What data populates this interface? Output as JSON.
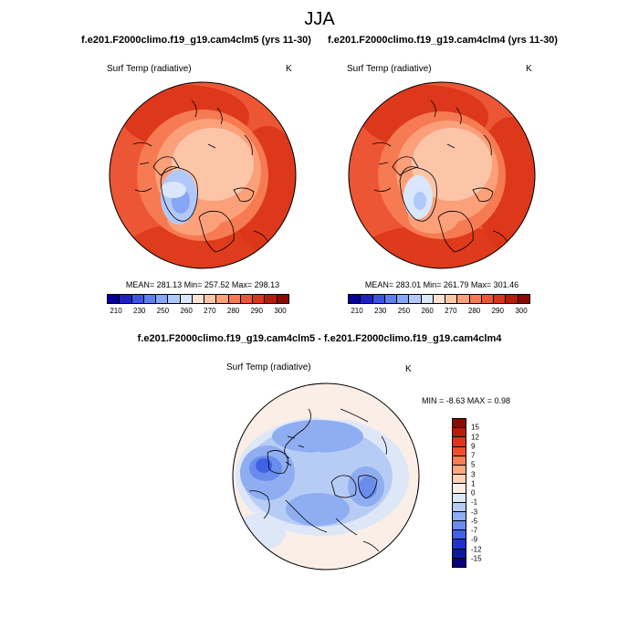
{
  "title": "JJA",
  "panels": [
    {
      "title": "f.e201.F2000climo.f19_g19.cam4clm5 (yrs 11-30)",
      "variable": "Surf Temp (radiative)",
      "units": "K",
      "stats": "MEAN= 281.13  Min= 257.52  Max= 298.13"
    },
    {
      "title": "f.e201.F2000climo.f19_g19.cam4clm4 (yrs 11-30)",
      "variable": "Surf Temp (radiative)",
      "units": "K",
      "stats": "MEAN= 283.01  Min= 261.79  Max= 301.46"
    }
  ],
  "abs_colorbar": {
    "labels": [
      "210",
      "230",
      "250",
      "260",
      "270",
      "280",
      "290",
      "300"
    ],
    "colors": [
      "#08009a",
      "#1d20c8",
      "#3b52e4",
      "#5d80ef",
      "#86a6f6",
      "#b1c8fa",
      "#d9e6fb",
      "#fbe2d4",
      "#fcc5a8",
      "#fca07a",
      "#f67a52",
      "#ec5634",
      "#dc3518",
      "#b81c08",
      "#8a0a02"
    ]
  },
  "diff_panel": {
    "title": "f.e201.F2000climo.f19_g19.cam4clm5 - f.e201.F2000climo.f19_g19.cam4clm4",
    "variable": "Surf Temp (radiative)",
    "units": "K",
    "stats": "MIN =  -8.63 MAX =   0.98"
  },
  "diff_colorbar": {
    "labels": [
      "15",
      "12",
      "9",
      "7",
      "5",
      "3",
      "1",
      "0",
      "-1",
      "-3",
      "-5",
      "-7",
      "-9",
      "-12",
      "-15"
    ],
    "colors": [
      "#8a0a02",
      "#b81c08",
      "#dc3518",
      "#f04f2c",
      "#f87e55",
      "#fca886",
      "#fdd2b8",
      "#faeee6",
      "#dde7f8",
      "#b7ccf5",
      "#8fadf1",
      "#6a8cec",
      "#3f62e6",
      "#1f33cc",
      "#0a1aa0",
      "#06007a"
    ]
  }
}
